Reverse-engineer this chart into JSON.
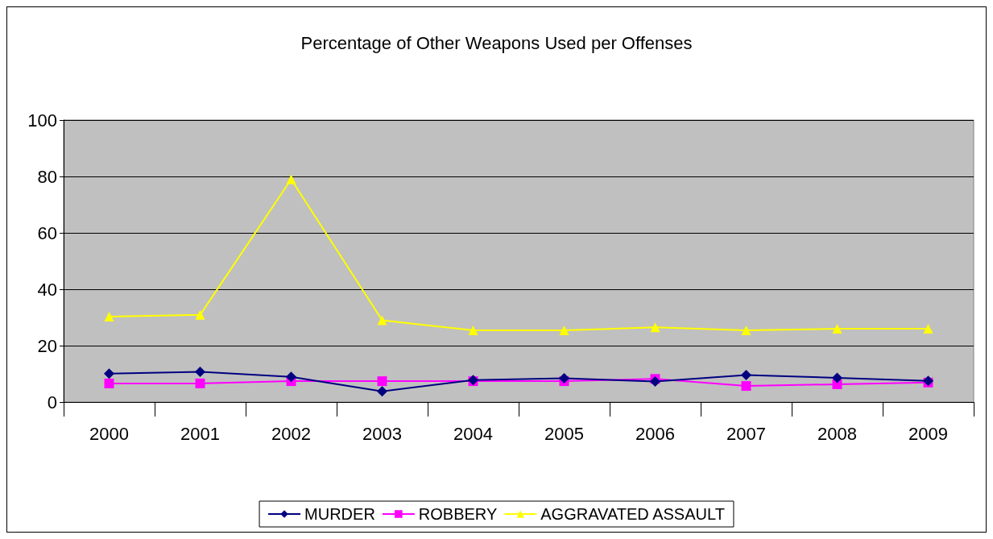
{
  "chart_data": {
    "type": "line",
    "title": "Percentage of Other Weapons Used per Offenses",
    "categories": [
      "2000",
      "2001",
      "2002",
      "2003",
      "2004",
      "2005",
      "2006",
      "2007",
      "2008",
      "2009"
    ],
    "series": [
      {
        "name": "MURDER",
        "color": "#000080",
        "marker": "diamond",
        "values": [
          10.1,
          10.7,
          8.9,
          3.8,
          7.8,
          8.4,
          7.3,
          9.6,
          8.6,
          7.5
        ]
      },
      {
        "name": "ROBBERY",
        "color": "#ff00ff",
        "marker": "square",
        "values": [
          6.6,
          6.6,
          7.4,
          7.4,
          7.4,
          7.4,
          8.2,
          5.7,
          6.3,
          6.9
        ]
      },
      {
        "name": "AGGRAVATED ASSAULT",
        "color": "#ffff00",
        "marker": "triangle",
        "values": [
          30.3,
          30.9,
          79,
          29,
          25.4,
          25.4,
          26.5,
          25.4,
          26,
          26
        ]
      }
    ],
    "ylim": [
      0,
      100
    ],
    "yticks": [
      0,
      20,
      40,
      60,
      80,
      100
    ],
    "grid": "y",
    "legend": "bottom",
    "line_style": "solid"
  }
}
